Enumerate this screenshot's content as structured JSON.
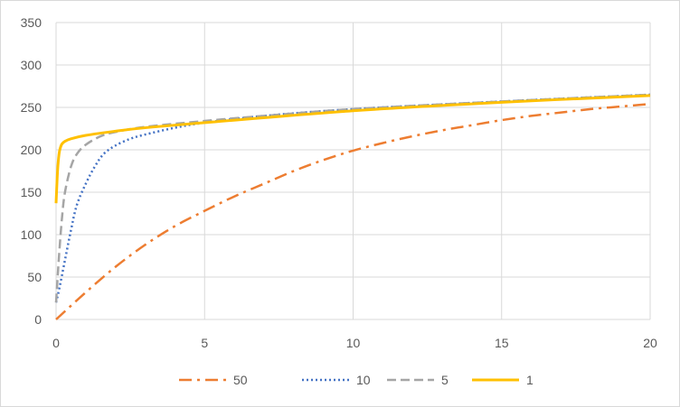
{
  "chart_data": {
    "type": "line",
    "title": "",
    "xlabel": "",
    "ylabel": "",
    "xlim": [
      0,
      20
    ],
    "ylim": [
      0,
      350
    ],
    "xticks": [
      0,
      5,
      10,
      15,
      20
    ],
    "yticks": [
      0,
      50,
      100,
      150,
      200,
      250,
      300,
      350
    ],
    "grid": true,
    "legend_position": "bottom",
    "series": [
      {
        "name": "50",
        "color": "#ED7D31",
        "dash": "dash-dot",
        "x": [
          0,
          1,
          2,
          3,
          4,
          5,
          6,
          7,
          8,
          9,
          10,
          11,
          12,
          13,
          14,
          15,
          16,
          17,
          18,
          19,
          20
        ],
        "y": [
          0,
          32,
          62,
          88,
          110,
          128,
          145,
          160,
          175,
          188,
          199,
          208,
          216,
          223,
          229,
          235,
          240,
          244,
          248,
          251,
          254
        ]
      },
      {
        "name": "10",
        "color": "#4472C4",
        "dash": "dotted",
        "x": [
          0,
          0.1,
          0.3,
          0.5,
          0.7,
          1,
          1.3,
          1.6,
          2,
          2.5,
          3,
          4,
          5,
          7,
          10,
          15,
          20
        ],
        "y": [
          20,
          35,
          70,
          105,
          135,
          160,
          180,
          195,
          205,
          213,
          218,
          226,
          232,
          240,
          248,
          257,
          265
        ]
      },
      {
        "name": "5",
        "color": "#A5A5A5",
        "dash": "dashed",
        "x": [
          0,
          0.1,
          0.2,
          0.3,
          0.5,
          0.7,
          1,
          1.5,
          2,
          3,
          5,
          7,
          10,
          15,
          20
        ],
        "y": [
          20,
          75,
          120,
          150,
          180,
          195,
          206,
          216,
          221,
          227,
          234,
          240,
          248,
          257,
          265
        ]
      },
      {
        "name": "1",
        "color": "#FFC000",
        "dash": "solid",
        "x": [
          0,
          0.05,
          0.1,
          0.15,
          0.2,
          0.3,
          0.5,
          1,
          2,
          3,
          5,
          10,
          15,
          20
        ],
        "y": [
          137,
          175,
          195,
          203,
          207,
          210,
          213,
          217,
          222,
          226,
          232,
          246,
          256,
          264
        ]
      }
    ]
  }
}
